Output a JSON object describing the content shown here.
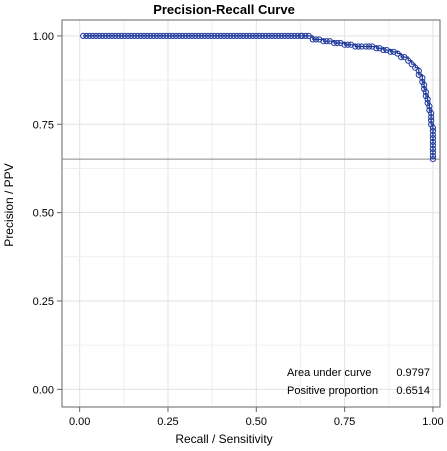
{
  "chart_data": {
    "type": "line",
    "title": "Precision-Recall Curve",
    "xlabel": "Recall / Sensitivity",
    "ylabel": "Precision / PPV",
    "xlim": [
      -0.05,
      1.02
    ],
    "ylim": [
      -0.05,
      1.045
    ],
    "xticks": [
      0.0,
      0.25,
      0.5,
      0.75,
      1.0
    ],
    "xtick_labels": [
      "0.00",
      "0.25",
      "0.50",
      "0.75",
      "1.00"
    ],
    "yticks": [
      0.0,
      0.25,
      0.5,
      0.75,
      1.0
    ],
    "ytick_labels": [
      "0.00",
      "0.25",
      "0.50",
      "0.75",
      "1.00"
    ],
    "grid": true,
    "marker": "open-circle",
    "series_color": "#1f3a9c",
    "baseline": {
      "y": 0.6514,
      "color": "#888888"
    },
    "annotation": {
      "rows": [
        {
          "label": "Area under curve",
          "value": "0.9797"
        },
        {
          "label": "Positive proportion",
          "value": "0.6514"
        }
      ]
    },
    "series": [
      {
        "x": [
          0.01,
          0.63,
          0.66,
          0.69,
          0.72,
          0.75,
          0.78,
          0.81,
          0.84,
          0.86,
          0.88,
          0.9,
          0.91,
          0.93,
          0.94,
          0.95,
          0.96,
          0.97,
          0.975,
          0.98,
          0.985,
          0.99,
          0.995,
          0.995,
          1.0,
          1.0,
          1.0,
          1.0,
          1.0,
          1.0
        ],
        "y": [
          1.0,
          1.0,
          0.99,
          0.985,
          0.98,
          0.975,
          0.97,
          0.97,
          0.965,
          0.96,
          0.955,
          0.95,
          0.94,
          0.93,
          0.92,
          0.91,
          0.89,
          0.87,
          0.85,
          0.83,
          0.81,
          0.79,
          0.77,
          0.75,
          0.74,
          0.72,
          0.7,
          0.68,
          0.66,
          0.6514
        ]
      }
    ]
  }
}
